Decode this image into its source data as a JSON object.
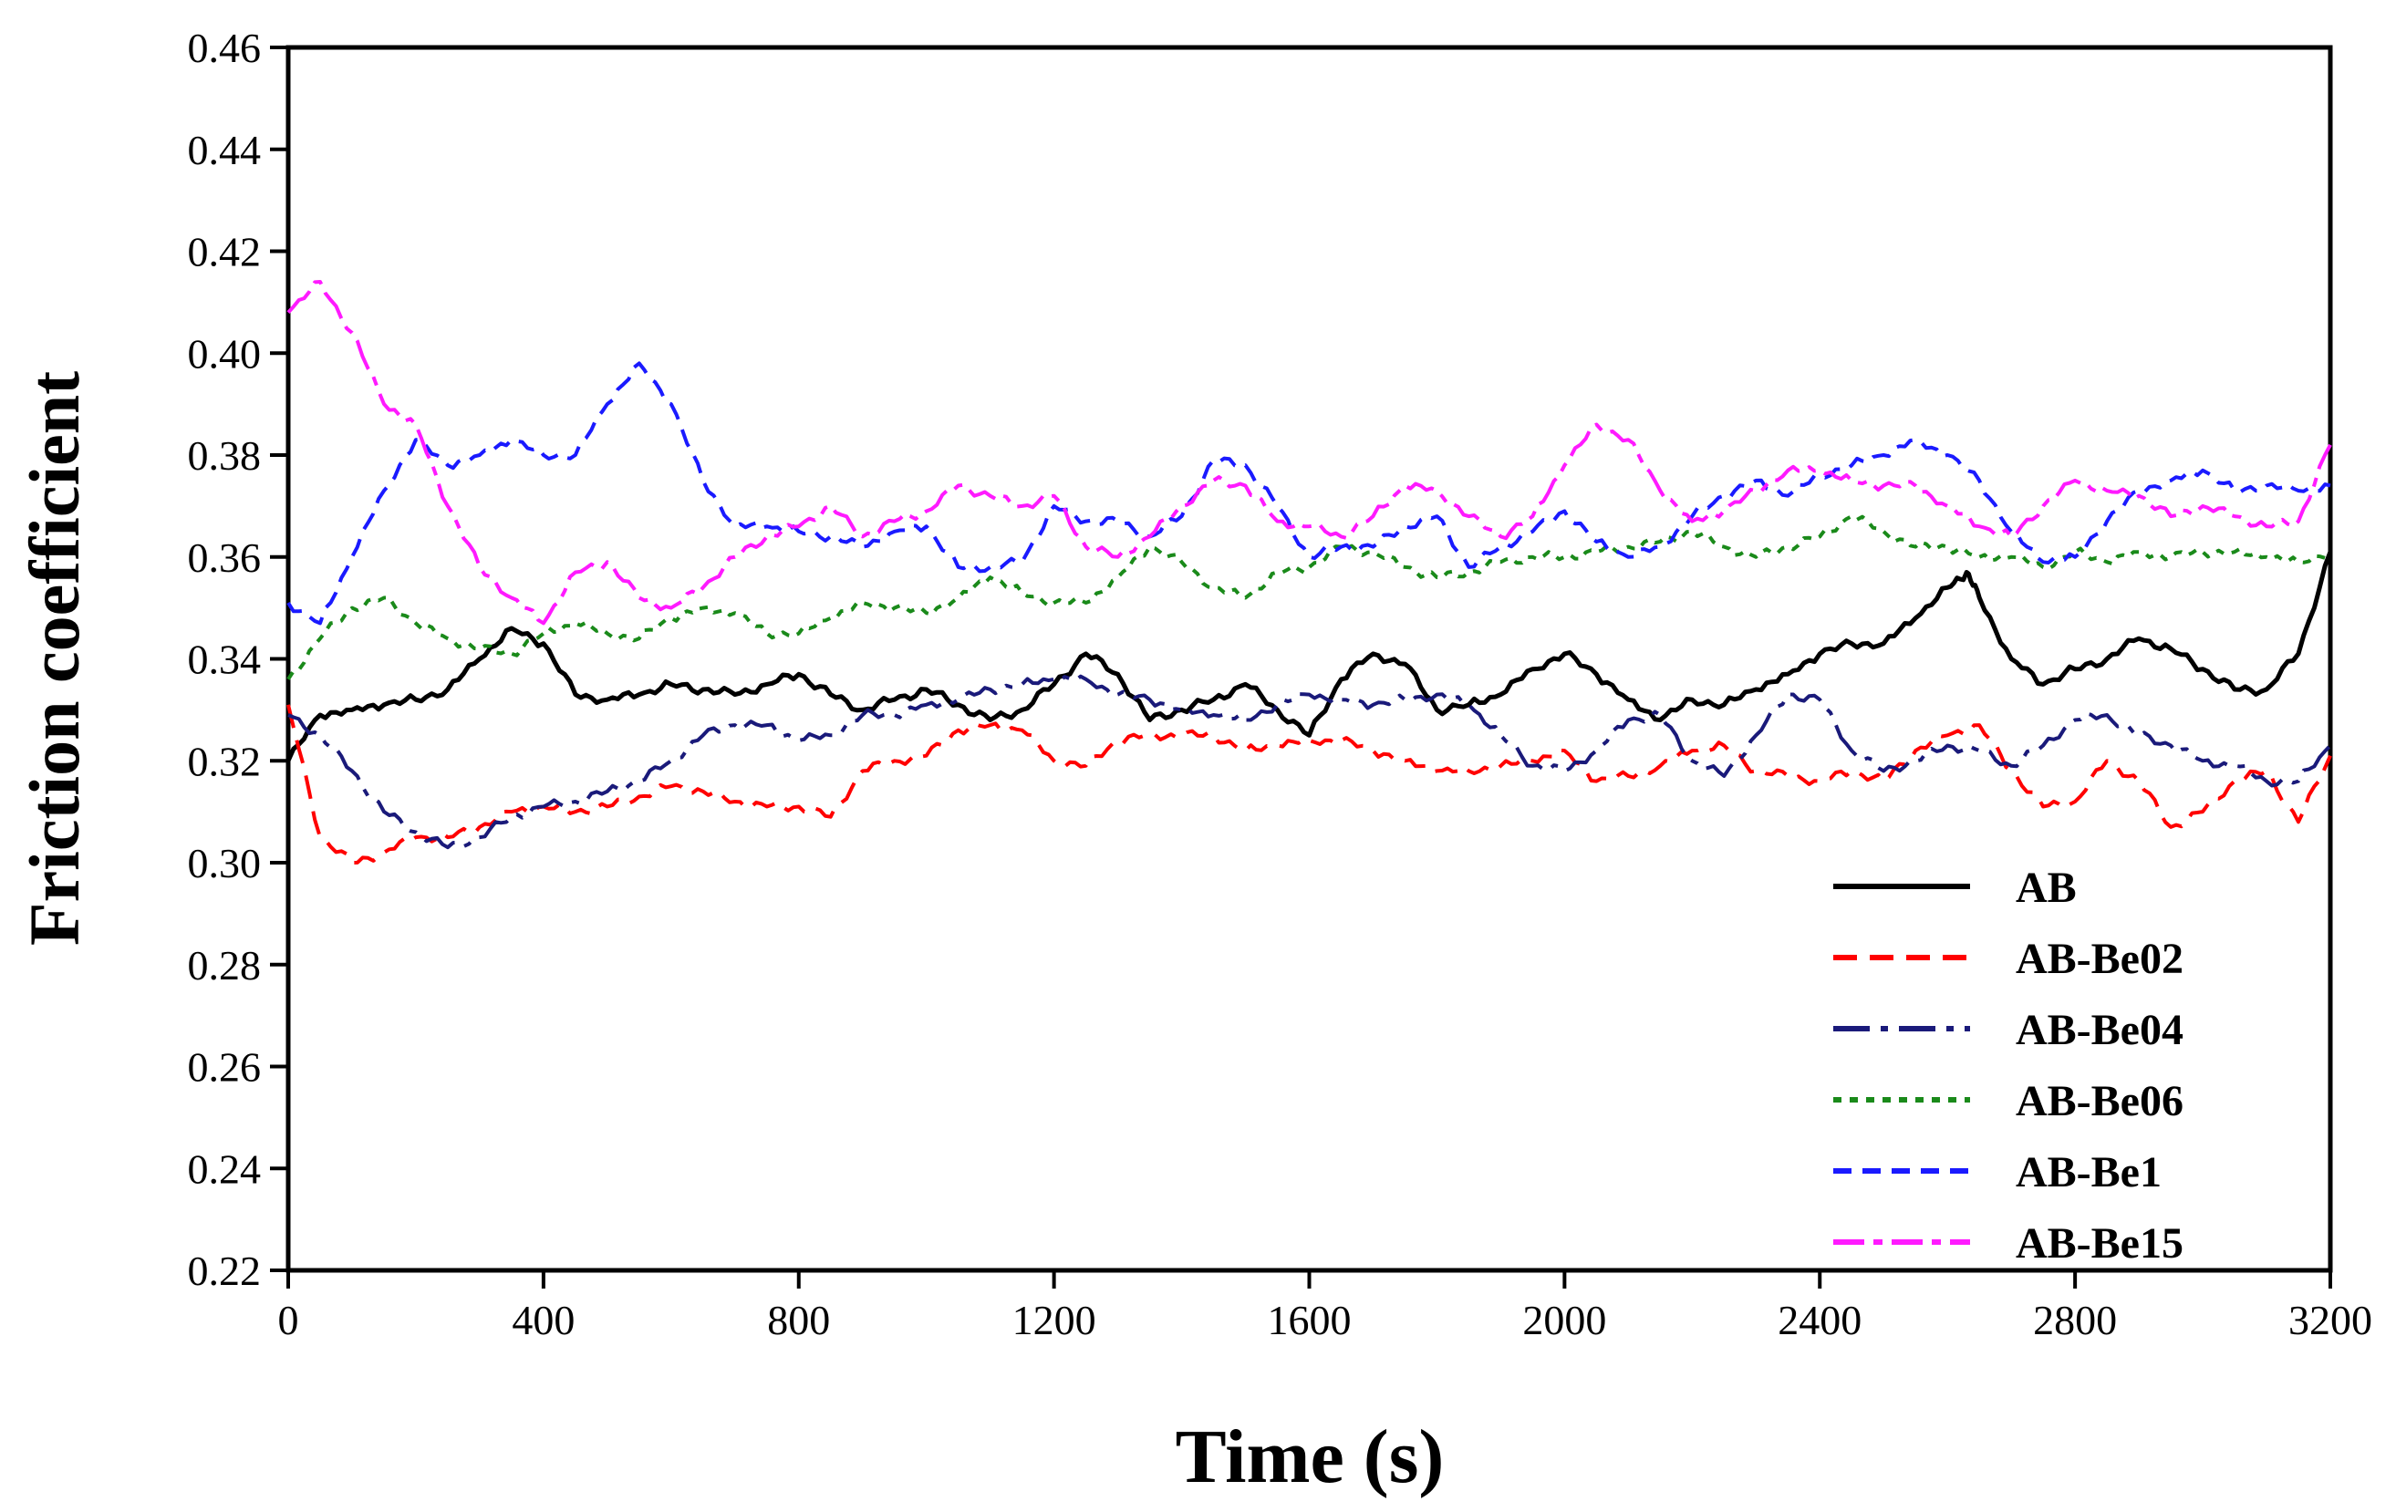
{
  "chart_data": {
    "type": "line",
    "title": "",
    "xlabel": "Time (s)",
    "ylabel": "Friction coefficient",
    "xlim": [
      0,
      3200
    ],
    "ylim": [
      0.22,
      0.46
    ],
    "xticks": [
      0,
      400,
      800,
      1200,
      1600,
      2000,
      2400,
      2800,
      3200
    ],
    "yticks": [
      0.22,
      0.24,
      0.26,
      0.28,
      0.3,
      0.32,
      0.34,
      0.36,
      0.38,
      0.4,
      0.42,
      0.44,
      0.46
    ],
    "xtick_labels": [
      "0",
      "400",
      "800",
      "1200",
      "1600",
      "2000",
      "2400",
      "2800",
      "3200"
    ],
    "ytick_labels": [
      "0.22",
      "0.24",
      "0.26",
      "0.28",
      "0.30",
      "0.32",
      "0.34",
      "0.36",
      "0.38",
      "0.40",
      "0.42",
      "0.44",
      "0.46"
    ],
    "grid": false,
    "legend_position": "bottom-right",
    "series": [
      {
        "name": "AB",
        "color": "#000000",
        "dash": "solid",
        "x": [
          0,
          50,
          100,
          150,
          200,
          250,
          300,
          350,
          400,
          450,
          500,
          550,
          600,
          650,
          700,
          750,
          800,
          850,
          900,
          950,
          1000,
          1050,
          1100,
          1150,
          1200,
          1250,
          1300,
          1350,
          1400,
          1450,
          1500,
          1550,
          1600,
          1650,
          1700,
          1750,
          1800,
          1850,
          1900,
          1950,
          2000,
          2050,
          2100,
          2150,
          2200,
          2250,
          2300,
          2350,
          2400,
          2450,
          2500,
          2550,
          2600,
          2630,
          2650,
          2700,
          2750,
          2800,
          2850,
          2900,
          2950,
          3000,
          3050,
          3100,
          3150,
          3200
        ],
        "y": [
          0.32,
          0.329,
          0.33,
          0.331,
          0.332,
          0.334,
          0.34,
          0.346,
          0.343,
          0.333,
          0.332,
          0.333,
          0.335,
          0.334,
          0.333,
          0.335,
          0.337,
          0.333,
          0.33,
          0.332,
          0.334,
          0.331,
          0.328,
          0.33,
          0.335,
          0.341,
          0.337,
          0.328,
          0.33,
          0.332,
          0.335,
          0.33,
          0.325,
          0.336,
          0.341,
          0.339,
          0.33,
          0.331,
          0.333,
          0.338,
          0.341,
          0.337,
          0.332,
          0.328,
          0.332,
          0.331,
          0.334,
          0.337,
          0.341,
          0.343,
          0.343,
          0.348,
          0.354,
          0.357,
          0.352,
          0.34,
          0.335,
          0.338,
          0.34,
          0.344,
          0.342,
          0.338,
          0.334,
          0.334,
          0.341,
          0.361
        ]
      },
      {
        "name": "AB-Be02",
        "color": "#ff0000",
        "dash": "long-dash",
        "x": [
          0,
          50,
          100,
          150,
          200,
          250,
          300,
          350,
          400,
          450,
          500,
          550,
          600,
          650,
          700,
          750,
          800,
          850,
          900,
          950,
          1000,
          1050,
          1100,
          1150,
          1200,
          1250,
          1300,
          1350,
          1400,
          1450,
          1500,
          1550,
          1600,
          1650,
          1700,
          1750,
          1800,
          1850,
          1900,
          1950,
          2000,
          2050,
          2100,
          2150,
          2200,
          2250,
          2300,
          2350,
          2400,
          2450,
          2500,
          2550,
          2600,
          2650,
          2700,
          2750,
          2800,
          2850,
          2900,
          2950,
          3000,
          3050,
          3100,
          3150,
          3200
        ],
        "y": [
          0.331,
          0.305,
          0.3,
          0.302,
          0.305,
          0.305,
          0.307,
          0.31,
          0.311,
          0.31,
          0.311,
          0.313,
          0.315,
          0.314,
          0.312,
          0.311,
          0.311,
          0.309,
          0.318,
          0.32,
          0.321,
          0.326,
          0.327,
          0.326,
          0.32,
          0.319,
          0.324,
          0.325,
          0.325,
          0.325,
          0.322,
          0.323,
          0.324,
          0.324,
          0.322,
          0.32,
          0.318,
          0.318,
          0.319,
          0.32,
          0.322,
          0.316,
          0.317,
          0.319,
          0.322,
          0.323,
          0.318,
          0.317,
          0.316,
          0.318,
          0.316,
          0.322,
          0.325,
          0.327,
          0.318,
          0.311,
          0.312,
          0.32,
          0.316,
          0.307,
          0.31,
          0.316,
          0.318,
          0.308,
          0.321
        ]
      },
      {
        "name": "AB-Be04",
        "color": "#1a1a7a",
        "dash": "dash-dot",
        "x": [
          0,
          50,
          100,
          150,
          200,
          250,
          300,
          350,
          400,
          450,
          500,
          550,
          600,
          650,
          700,
          750,
          800,
          850,
          900,
          950,
          1000,
          1050,
          1100,
          1150,
          1200,
          1250,
          1300,
          1350,
          1400,
          1450,
          1500,
          1550,
          1600,
          1650,
          1700,
          1750,
          1800,
          1850,
          1900,
          1950,
          2000,
          2050,
          2100,
          2150,
          2200,
          2250,
          2300,
          2350,
          2400,
          2450,
          2500,
          2550,
          2600,
          2650,
          2700,
          2750,
          2800,
          2850,
          2900,
          2950,
          3000,
          3050,
          3100,
          3150,
          3200
        ],
        "y": [
          0.329,
          0.325,
          0.318,
          0.31,
          0.306,
          0.303,
          0.305,
          0.309,
          0.311,
          0.312,
          0.314,
          0.316,
          0.32,
          0.325,
          0.327,
          0.327,
          0.324,
          0.325,
          0.329,
          0.329,
          0.331,
          0.332,
          0.334,
          0.335,
          0.336,
          0.336,
          0.333,
          0.332,
          0.33,
          0.329,
          0.328,
          0.331,
          0.333,
          0.332,
          0.331,
          0.332,
          0.333,
          0.331,
          0.325,
          0.319,
          0.318,
          0.322,
          0.328,
          0.329,
          0.32,
          0.317,
          0.325,
          0.333,
          0.332,
          0.322,
          0.318,
          0.32,
          0.323,
          0.322,
          0.319,
          0.323,
          0.328,
          0.329,
          0.325,
          0.323,
          0.32,
          0.319,
          0.316,
          0.316,
          0.323
        ]
      },
      {
        "name": "AB-Be06",
        "color": "#1a8a1a",
        "dash": "dotted",
        "x": [
          0,
          50,
          100,
          150,
          200,
          250,
          300,
          350,
          400,
          450,
          500,
          550,
          600,
          650,
          700,
          750,
          800,
          850,
          900,
          950,
          1000,
          1050,
          1100,
          1150,
          1200,
          1250,
          1300,
          1350,
          1400,
          1450,
          1500,
          1550,
          1600,
          1650,
          1700,
          1750,
          1800,
          1850,
          1900,
          1950,
          2000,
          2050,
          2100,
          2150,
          2200,
          2250,
          2300,
          2350,
          2400,
          2450,
          2500,
          2550,
          2600,
          2650,
          2700,
          2750,
          2800,
          2850,
          2900,
          2950,
          3000,
          3050,
          3100,
          3150,
          3200
        ],
        "y": [
          0.336,
          0.344,
          0.35,
          0.352,
          0.347,
          0.344,
          0.342,
          0.341,
          0.345,
          0.347,
          0.345,
          0.344,
          0.348,
          0.35,
          0.349,
          0.345,
          0.345,
          0.348,
          0.351,
          0.35,
          0.349,
          0.352,
          0.356,
          0.353,
          0.351,
          0.351,
          0.356,
          0.362,
          0.359,
          0.354,
          0.352,
          0.357,
          0.358,
          0.362,
          0.361,
          0.358,
          0.356,
          0.357,
          0.359,
          0.36,
          0.36,
          0.361,
          0.362,
          0.363,
          0.365,
          0.362,
          0.36,
          0.362,
          0.364,
          0.368,
          0.365,
          0.362,
          0.362,
          0.36,
          0.36,
          0.358,
          0.361,
          0.359,
          0.361,
          0.36,
          0.361,
          0.361,
          0.36,
          0.359,
          0.361
        ]
      },
      {
        "name": "AB-Be1",
        "color": "#1a1aff",
        "dash": "medium-dash",
        "x": [
          0,
          50,
          100,
          150,
          200,
          250,
          300,
          350,
          400,
          450,
          500,
          550,
          600,
          650,
          700,
          750,
          800,
          850,
          900,
          950,
          1000,
          1050,
          1100,
          1150,
          1200,
          1250,
          1300,
          1350,
          1400,
          1450,
          1500,
          1550,
          1600,
          1650,
          1700,
          1750,
          1800,
          1850,
          1900,
          1950,
          2000,
          2050,
          2100,
          2150,
          2200,
          2250,
          2300,
          2350,
          2400,
          2450,
          2500,
          2550,
          2600,
          2650,
          2700,
          2750,
          2800,
          2850,
          2900,
          2950,
          3000,
          3050,
          3100,
          3150,
          3200
        ],
        "y": [
          0.351,
          0.347,
          0.36,
          0.373,
          0.383,
          0.378,
          0.38,
          0.383,
          0.38,
          0.38,
          0.39,
          0.398,
          0.39,
          0.375,
          0.366,
          0.366,
          0.365,
          0.364,
          0.362,
          0.365,
          0.366,
          0.358,
          0.358,
          0.359,
          0.37,
          0.367,
          0.367,
          0.364,
          0.368,
          0.379,
          0.378,
          0.37,
          0.36,
          0.362,
          0.362,
          0.366,
          0.368,
          0.358,
          0.362,
          0.365,
          0.369,
          0.363,
          0.36,
          0.362,
          0.368,
          0.372,
          0.375,
          0.372,
          0.376,
          0.378,
          0.38,
          0.383,
          0.38,
          0.375,
          0.365,
          0.359,
          0.36,
          0.367,
          0.373,
          0.375,
          0.377,
          0.373,
          0.374,
          0.373,
          0.374
        ]
      },
      {
        "name": "AB-Be15",
        "color": "#ff1aff",
        "dash": "long-dash-dot",
        "x": [
          0,
          50,
          100,
          150,
          200,
          250,
          300,
          350,
          400,
          450,
          500,
          550,
          600,
          650,
          700,
          750,
          800,
          850,
          900,
          950,
          1000,
          1050,
          1100,
          1150,
          1200,
          1250,
          1300,
          1350,
          1400,
          1450,
          1500,
          1550,
          1600,
          1650,
          1700,
          1750,
          1800,
          1850,
          1900,
          1950,
          2000,
          2050,
          2100,
          2150,
          2200,
          2250,
          2300,
          2350,
          2400,
          2450,
          2500,
          2550,
          2600,
          2650,
          2700,
          2750,
          2800,
          2850,
          2900,
          2950,
          3000,
          3050,
          3100,
          3150,
          3200
        ],
        "y": [
          0.408,
          0.414,
          0.404,
          0.39,
          0.386,
          0.37,
          0.358,
          0.352,
          0.347,
          0.357,
          0.359,
          0.352,
          0.35,
          0.354,
          0.36,
          0.364,
          0.366,
          0.37,
          0.364,
          0.367,
          0.369,
          0.374,
          0.372,
          0.37,
          0.372,
          0.362,
          0.36,
          0.364,
          0.37,
          0.375,
          0.374,
          0.367,
          0.366,
          0.364,
          0.368,
          0.374,
          0.373,
          0.368,
          0.364,
          0.368,
          0.378,
          0.386,
          0.383,
          0.373,
          0.367,
          0.369,
          0.373,
          0.377,
          0.377,
          0.375,
          0.374,
          0.374,
          0.37,
          0.366,
          0.364,
          0.37,
          0.375,
          0.373,
          0.372,
          0.368,
          0.37,
          0.368,
          0.366,
          0.367,
          0.382
        ]
      }
    ]
  }
}
